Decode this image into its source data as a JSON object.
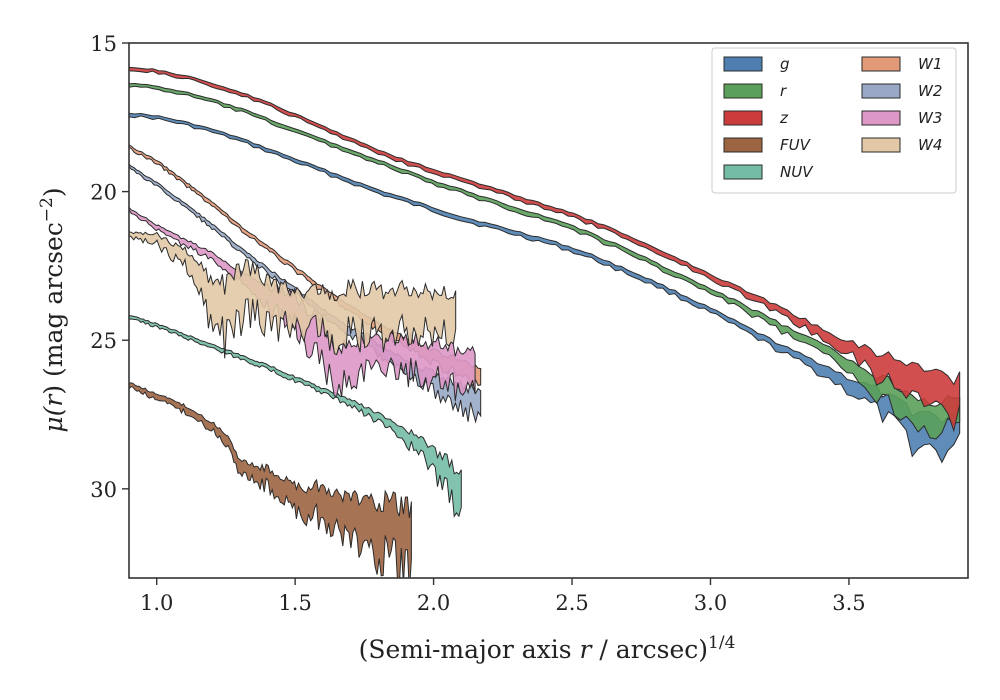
{
  "chart_data": {
    "type": "area",
    "title": "",
    "xlabel": "(Semi-major axis r / arcsec)",
    "xlabel_main": "(Semi-major axis ",
    "xlabel_var": "r",
    "xlabel_rest": " / arcsec)",
    "xlabel_exp": "1/4",
    "ylabel": "μ(r) (mag arcsec−2)",
    "ylabel_mu": "μ(",
    "ylabel_var": "r",
    "ylabel_rest": ") (mag arcsec",
    "ylabel_exp": "−2",
    "ylabel_close": ")",
    "xlim": [
      0.9,
      3.93
    ],
    "ylim": [
      33,
      15
    ],
    "y_inverted": true,
    "xticks": [
      1.0,
      1.5,
      2.0,
      2.5,
      3.0,
      3.5
    ],
    "xtick_labels": [
      "1.0",
      "1.5",
      "2.0",
      "2.5",
      "3.0",
      "3.5"
    ],
    "yticks": [
      15,
      20,
      25,
      30
    ],
    "ytick_labels": [
      "15",
      "20",
      "25",
      "30"
    ],
    "grid": false,
    "legend_position": "top-right",
    "legend_columns": 2,
    "series": [
      {
        "name": "g",
        "color": "#4e7fb0",
        "center": [
          [
            0.9,
            17.4
          ],
          [
            1.0,
            17.5
          ],
          [
            1.1,
            17.7
          ],
          [
            1.2,
            17.95
          ],
          [
            1.3,
            18.25
          ],
          [
            1.4,
            18.6
          ],
          [
            1.5,
            18.95
          ],
          [
            1.6,
            19.3
          ],
          [
            1.7,
            19.65
          ],
          [
            1.8,
            20.0
          ],
          [
            1.9,
            20.3
          ],
          [
            2.0,
            20.6
          ],
          [
            2.1,
            20.9
          ],
          [
            2.2,
            21.15
          ],
          [
            2.3,
            21.4
          ],
          [
            2.4,
            21.65
          ],
          [
            2.5,
            21.95
          ],
          [
            2.6,
            22.3
          ],
          [
            2.7,
            22.7
          ],
          [
            2.8,
            23.1
          ],
          [
            2.9,
            23.55
          ],
          [
            3.0,
            24.0
          ],
          [
            3.1,
            24.5
          ],
          [
            3.2,
            25.0
          ],
          [
            3.3,
            25.5
          ],
          [
            3.4,
            25.95
          ],
          [
            3.5,
            26.5
          ],
          [
            3.6,
            27.0
          ],
          [
            3.65,
            27.4
          ],
          [
            3.7,
            27.7
          ],
          [
            3.75,
            28.0
          ],
          [
            3.8,
            28.1
          ],
          [
            3.85,
            28.2
          ],
          [
            3.9,
            28.0
          ]
        ],
        "width": [
          [
            0.9,
            0.1
          ],
          [
            3.0,
            0.15
          ],
          [
            3.3,
            0.25
          ],
          [
            3.5,
            0.45
          ],
          [
            3.65,
            0.8
          ],
          [
            3.75,
            1.2
          ],
          [
            3.9,
            1.1
          ]
        ]
      },
      {
        "name": "r",
        "color": "#5aa05a",
        "center": [
          [
            0.9,
            16.4
          ],
          [
            1.0,
            16.5
          ],
          [
            1.1,
            16.7
          ],
          [
            1.2,
            16.95
          ],
          [
            1.3,
            17.25
          ],
          [
            1.4,
            17.6
          ],
          [
            1.5,
            17.95
          ],
          [
            1.6,
            18.3
          ],
          [
            1.7,
            18.65
          ],
          [
            1.8,
            19.0
          ],
          [
            1.9,
            19.35
          ],
          [
            2.0,
            19.7
          ],
          [
            2.1,
            20.0
          ],
          [
            2.2,
            20.3
          ],
          [
            2.3,
            20.6
          ],
          [
            2.4,
            20.9
          ],
          [
            2.5,
            21.2
          ],
          [
            2.6,
            21.6
          ],
          [
            2.7,
            22.0
          ],
          [
            2.8,
            22.45
          ],
          [
            2.9,
            22.9
          ],
          [
            3.0,
            23.35
          ],
          [
            3.1,
            23.8
          ],
          [
            3.2,
            24.3
          ],
          [
            3.3,
            24.8
          ],
          [
            3.4,
            25.3
          ],
          [
            3.5,
            25.85
          ],
          [
            3.6,
            26.5
          ],
          [
            3.7,
            27.1
          ],
          [
            3.8,
            27.5
          ],
          [
            3.9,
            27.6
          ]
        ],
        "width": [
          [
            0.9,
            0.1
          ],
          [
            3.0,
            0.15
          ],
          [
            3.3,
            0.25
          ],
          [
            3.5,
            0.4
          ],
          [
            3.65,
            0.8
          ],
          [
            3.9,
            1.0
          ]
        ]
      },
      {
        "name": "z",
        "color": "#cc3c3c",
        "center": [
          [
            0.9,
            15.85
          ],
          [
            1.0,
            15.95
          ],
          [
            1.1,
            16.15
          ],
          [
            1.2,
            16.4
          ],
          [
            1.3,
            16.7
          ],
          [
            1.4,
            17.05
          ],
          [
            1.5,
            17.45
          ],
          [
            1.6,
            17.85
          ],
          [
            1.7,
            18.25
          ],
          [
            1.8,
            18.65
          ],
          [
            1.9,
            19.0
          ],
          [
            2.0,
            19.3
          ],
          [
            2.1,
            19.6
          ],
          [
            2.2,
            19.9
          ],
          [
            2.3,
            20.2
          ],
          [
            2.4,
            20.5
          ],
          [
            2.5,
            20.8
          ],
          [
            2.6,
            21.15
          ],
          [
            2.7,
            21.55
          ],
          [
            2.8,
            21.95
          ],
          [
            2.9,
            22.4
          ],
          [
            3.0,
            22.85
          ],
          [
            3.1,
            23.3
          ],
          [
            3.2,
            23.75
          ],
          [
            3.3,
            24.25
          ],
          [
            3.4,
            24.75
          ],
          [
            3.5,
            25.25
          ],
          [
            3.6,
            25.8
          ],
          [
            3.7,
            26.2
          ],
          [
            3.8,
            26.6
          ],
          [
            3.9,
            26.9
          ]
        ],
        "width": [
          [
            0.9,
            0.1
          ],
          [
            3.0,
            0.15
          ],
          [
            3.3,
            0.25
          ],
          [
            3.5,
            0.4
          ],
          [
            3.6,
            0.8
          ],
          [
            3.9,
            1.3
          ]
        ]
      },
      {
        "name": "FUV",
        "color": "#9c6542",
        "center": [
          [
            0.9,
            26.5
          ],
          [
            1.0,
            26.9
          ],
          [
            1.1,
            27.3
          ],
          [
            1.2,
            27.9
          ],
          [
            1.25,
            28.3
          ],
          [
            1.3,
            29.2
          ],
          [
            1.35,
            29.5
          ],
          [
            1.4,
            29.6
          ],
          [
            1.45,
            30.0
          ],
          [
            1.5,
            30.3
          ],
          [
            1.55,
            30.5
          ],
          [
            1.6,
            30.4
          ],
          [
            1.65,
            30.9
          ],
          [
            1.7,
            31.0
          ],
          [
            1.8,
            31.3
          ],
          [
            1.9,
            31.7
          ],
          [
            1.92,
            31.8
          ]
        ],
        "width": [
          [
            0.9,
            0.15
          ],
          [
            1.2,
            0.25
          ],
          [
            1.4,
            0.6
          ],
          [
            1.6,
            1.1
          ],
          [
            1.92,
            2.2
          ]
        ]
      },
      {
        "name": "NUV",
        "color": "#74bca6",
        "center": [
          [
            0.9,
            24.2
          ],
          [
            1.0,
            24.5
          ],
          [
            1.1,
            24.85
          ],
          [
            1.2,
            25.2
          ],
          [
            1.3,
            25.55
          ],
          [
            1.4,
            25.9
          ],
          [
            1.5,
            26.3
          ],
          [
            1.6,
            26.7
          ],
          [
            1.7,
            27.1
          ],
          [
            1.8,
            27.6
          ],
          [
            1.9,
            28.2
          ],
          [
            2.0,
            29.0
          ],
          [
            2.05,
            29.6
          ],
          [
            2.1,
            30.2
          ]
        ],
        "width": [
          [
            0.9,
            0.1
          ],
          [
            1.6,
            0.15
          ],
          [
            1.85,
            0.3
          ],
          [
            2.0,
            0.7
          ],
          [
            2.1,
            1.4
          ]
        ]
      },
      {
        "name": "W1",
        "color": "#e39a78",
        "center": [
          [
            0.9,
            18.5
          ],
          [
            1.0,
            19.0
          ],
          [
            1.1,
            19.7
          ],
          [
            1.2,
            20.4
          ],
          [
            1.3,
            21.2
          ],
          [
            1.4,
            21.9
          ],
          [
            1.5,
            22.6
          ],
          [
            1.6,
            23.3
          ],
          [
            1.7,
            23.95
          ],
          [
            1.8,
            24.55
          ],
          [
            1.9,
            25.1
          ],
          [
            2.0,
            25.55
          ],
          [
            2.1,
            25.95
          ],
          [
            2.17,
            26.3
          ]
        ],
        "width": [
          [
            0.9,
            0.1
          ],
          [
            1.6,
            0.15
          ],
          [
            1.9,
            0.3
          ],
          [
            2.17,
            0.6
          ]
        ]
      },
      {
        "name": "W2",
        "color": "#98a8c6",
        "center": [
          [
            0.9,
            19.15
          ],
          [
            1.0,
            19.75
          ],
          [
            1.1,
            20.45
          ],
          [
            1.2,
            21.15
          ],
          [
            1.3,
            21.95
          ],
          [
            1.4,
            22.65
          ],
          [
            1.5,
            23.35
          ],
          [
            1.6,
            24.05
          ],
          [
            1.7,
            24.7
          ],
          [
            1.8,
            25.3
          ],
          [
            1.9,
            25.85
          ],
          [
            2.0,
            26.4
          ],
          [
            2.1,
            26.9
          ],
          [
            2.17,
            27.2
          ]
        ],
        "width": [
          [
            0.9,
            0.1
          ],
          [
            1.6,
            0.2
          ],
          [
            1.9,
            0.4
          ],
          [
            2.17,
            0.9
          ]
        ]
      },
      {
        "name": "W3",
        "color": "#dd98c8",
        "center": [
          [
            0.9,
            20.6
          ],
          [
            1.0,
            21.2
          ],
          [
            1.1,
            21.7
          ],
          [
            1.2,
            22.2
          ],
          [
            1.3,
            22.8
          ],
          [
            1.4,
            23.5
          ],
          [
            1.5,
            24.0
          ],
          [
            1.55,
            24.6
          ],
          [
            1.6,
            25.1
          ],
          [
            1.65,
            26.0
          ],
          [
            1.7,
            25.6
          ],
          [
            1.8,
            25.4
          ],
          [
            1.9,
            25.5
          ],
          [
            2.0,
            25.7
          ],
          [
            2.1,
            26.1
          ],
          [
            2.15,
            26.2
          ]
        ],
        "width": [
          [
            0.9,
            0.1
          ],
          [
            1.3,
            0.3
          ],
          [
            1.6,
            1.4
          ],
          [
            1.8,
            1.0
          ],
          [
            2.15,
            1.4
          ]
        ]
      },
      {
        "name": "W4",
        "color": "#e2c8a6",
        "center": [
          [
            0.9,
            21.45
          ],
          [
            1.0,
            21.6
          ],
          [
            1.1,
            22.2
          ],
          [
            1.15,
            22.9
          ],
          [
            1.2,
            23.6
          ],
          [
            1.25,
            24.0
          ],
          [
            1.3,
            23.3
          ],
          [
            1.4,
            23.7
          ],
          [
            1.5,
            24.0
          ],
          [
            1.6,
            24.1
          ],
          [
            1.7,
            24.1
          ],
          [
            1.8,
            24.1
          ],
          [
            1.9,
            24.0
          ],
          [
            2.0,
            24.1
          ],
          [
            2.08,
            24.0
          ]
        ],
        "width": [
          [
            0.9,
            0.15
          ],
          [
            1.1,
            0.5
          ],
          [
            1.25,
            1.8
          ],
          [
            1.5,
            1.2
          ],
          [
            1.7,
            1.6
          ],
          [
            2.08,
            1.3
          ]
        ]
      }
    ]
  }
}
